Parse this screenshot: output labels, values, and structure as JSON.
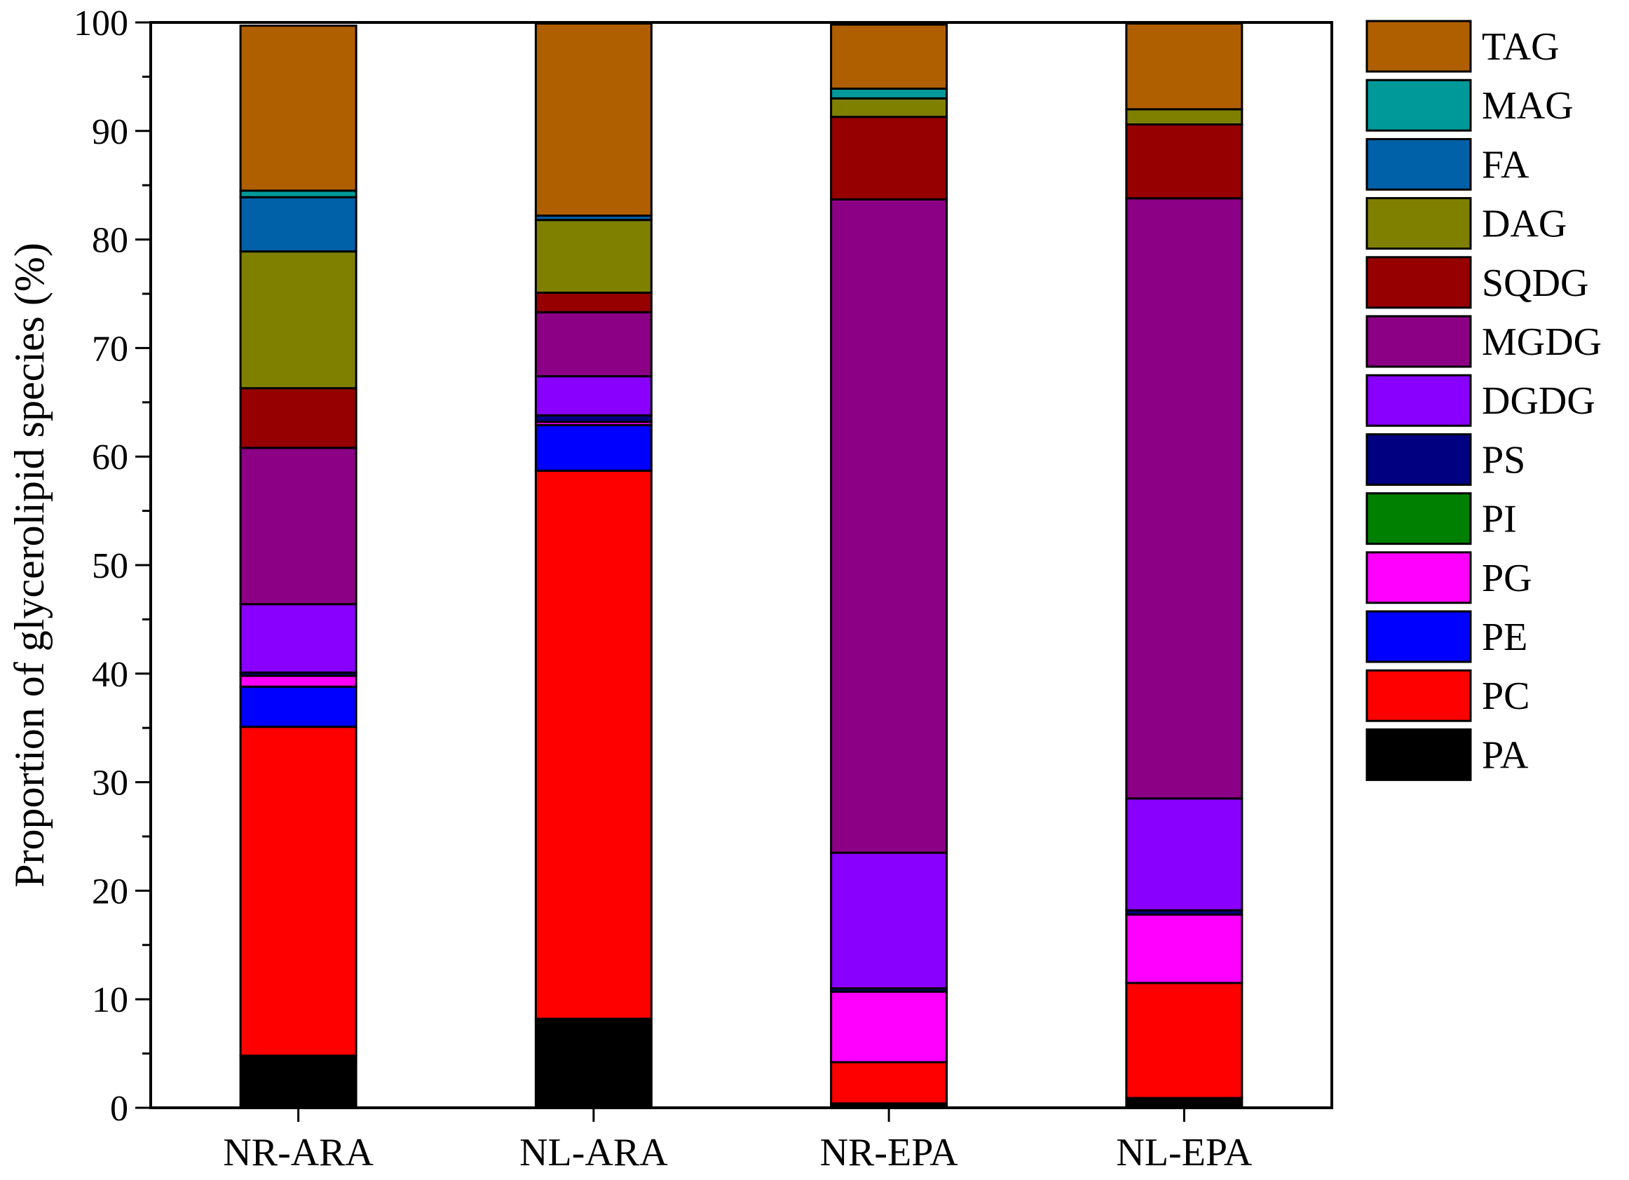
{
  "chart_data": {
    "type": "bar",
    "stacked": true,
    "title": "",
    "xlabel": "",
    "ylabel": "Proportion of glycerolipid species (%)",
    "ylim": [
      0,
      100
    ],
    "yticks": [
      0,
      10,
      20,
      30,
      40,
      50,
      60,
      70,
      80,
      90,
      100
    ],
    "categories": [
      "NR-ARA",
      "NL-ARA",
      "NR-EPA",
      "NL-EPA"
    ],
    "legend_position": "right",
    "series": [
      {
        "name": "PA",
        "color": "#000000",
        "values": [
          4.8,
          8.2,
          0.4,
          0.9
        ]
      },
      {
        "name": "PC",
        "color": "#ff0000",
        "values": [
          30.3,
          50.5,
          3.8,
          10.6
        ]
      },
      {
        "name": "PE",
        "color": "#0000ff",
        "values": [
          3.7,
          4.2,
          0.0,
          0.0
        ]
      },
      {
        "name": "PG",
        "color": "#ff00ff",
        "values": [
          1.0,
          0.3,
          6.5,
          6.3
        ]
      },
      {
        "name": "PI",
        "color": "#008000",
        "values": [
          0.0,
          0.0,
          0.0,
          0.0
        ]
      },
      {
        "name": "PS",
        "color": "#000080",
        "values": [
          0.3,
          0.6,
          0.3,
          0.4
        ]
      },
      {
        "name": "DGDG",
        "color": "#8a00ff",
        "values": [
          6.3,
          3.6,
          12.5,
          10.3
        ]
      },
      {
        "name": "MGDG",
        "color": "#8b0085",
        "values": [
          14.4,
          5.9,
          60.2,
          55.3
        ]
      },
      {
        "name": "SQDG",
        "color": "#960000",
        "values": [
          5.5,
          1.8,
          7.6,
          6.8
        ]
      },
      {
        "name": "DAG",
        "color": "#808000",
        "values": [
          12.6,
          6.7,
          1.7,
          1.4
        ]
      },
      {
        "name": "FA",
        "color": "#0060a8",
        "values": [
          5.0,
          0.4,
          0.0,
          0.0
        ]
      },
      {
        "name": "MAG",
        "color": "#009999",
        "values": [
          0.6,
          0.0,
          0.9,
          0.0
        ]
      },
      {
        "name": "TAG",
        "color": "#b05f00",
        "values": [
          15.2,
          17.7,
          5.9,
          7.9
        ]
      }
    ]
  }
}
